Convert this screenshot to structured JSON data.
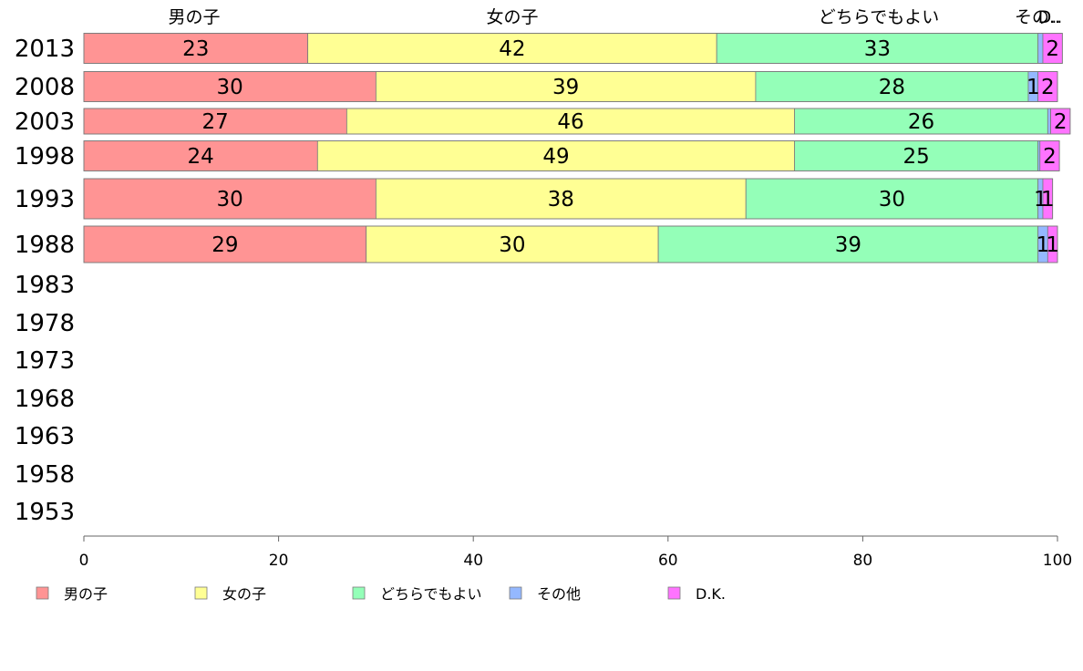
{
  "chart_data": {
    "type": "bar",
    "orientation": "horizontal",
    "stacked": true,
    "categories": [
      "2013",
      "2008",
      "2003",
      "1998",
      "1993",
      "1988",
      "1983",
      "1978",
      "1973",
      "1968",
      "1963",
      "1958",
      "1953"
    ],
    "series": [
      {
        "name": "男の子",
        "color": "#ff9494",
        "values": [
          23,
          30,
          27,
          24,
          30,
          29,
          null,
          null,
          null,
          null,
          null,
          null,
          null
        ]
      },
      {
        "name": "女の子",
        "color": "#ffff94",
        "values": [
          42,
          39,
          46,
          49,
          38,
          30,
          null,
          null,
          null,
          null,
          null,
          null,
          null
        ]
      },
      {
        "name": "どちらでもよい",
        "color": "#94ffb8",
        "values": [
          33,
          28,
          26,
          25,
          30,
          39,
          null,
          null,
          null,
          null,
          null,
          null,
          null
        ]
      },
      {
        "name": "その他",
        "color": "#94b8ff",
        "values": [
          0.5,
          1,
          0.3,
          0.2,
          0.5,
          1,
          null,
          null,
          null,
          null,
          null,
          null,
          null
        ]
      },
      {
        "name": "D.K.",
        "color": "#ff73ff",
        "values": [
          2,
          2,
          2,
          2,
          1,
          1,
          null,
          null,
          null,
          null,
          null,
          null,
          null
        ]
      }
    ],
    "data_labels": [
      [
        "23",
        "42",
        "33",
        "",
        "2"
      ],
      [
        "30",
        "39",
        "28",
        "1",
        "2"
      ],
      [
        "27",
        "46",
        "26",
        "",
        "2"
      ],
      [
        "24",
        "49",
        "25",
        "",
        "2"
      ],
      [
        "30",
        "38",
        "30",
        "1",
        "1"
      ],
      [
        "29",
        "30",
        "39",
        "1",
        "1"
      ]
    ],
    "top_labels": [
      "男の子",
      "女の子",
      "どちらでもよい",
      "その..",
      "D.."
    ],
    "xlim": [
      0,
      100
    ],
    "xticks": [
      "0",
      "20",
      "40",
      "60",
      "80",
      "100"
    ],
    "xlabel": "",
    "ylabel": "",
    "title": "",
    "legend": [
      "男の子",
      "女の子",
      "どちらでもよい",
      "その他",
      "D.K."
    ],
    "legend_position": "bottom",
    "grid": false
  }
}
